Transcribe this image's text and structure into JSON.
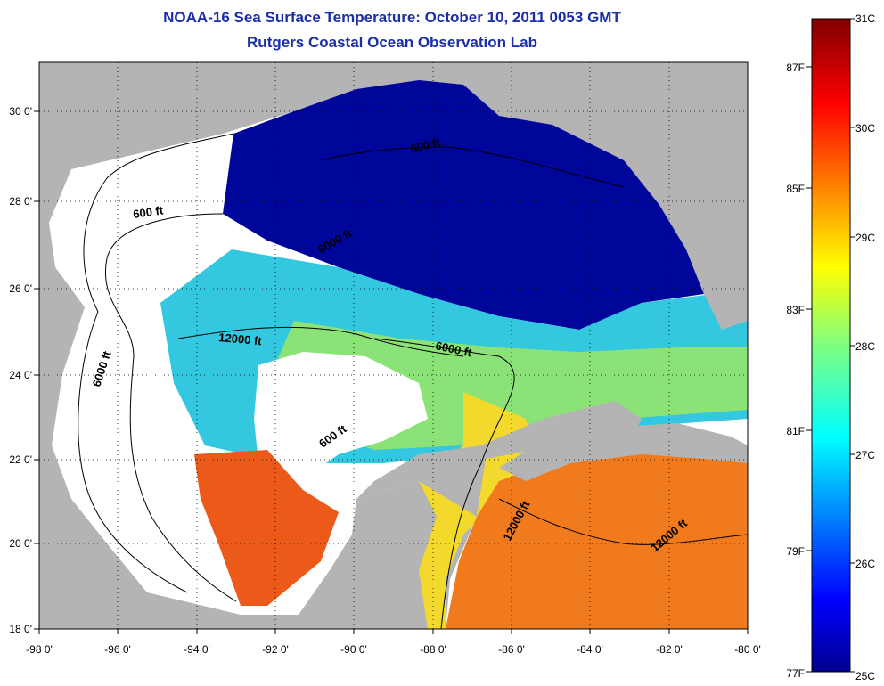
{
  "title": "NOAA-16 Sea Surface Temperature:  October 10, 2011 0053 GMT",
  "subtitle": "Rutgers Coastal Ocean Observation Lab",
  "map": {
    "lon_range": [
      -98,
      -80
    ],
    "lat_range": [
      18,
      31
    ],
    "lon_ticks": [
      "-98 0'",
      "-96 0'",
      "-94 0'",
      "-92 0'",
      "-90 0'",
      "-88 0'",
      "-86 0'",
      "-84 0'",
      "-82 0'",
      "-80 0'"
    ],
    "lat_ticks": [
      "18 0'",
      "20 0'",
      "22 0'",
      "24 0'",
      "26 0'",
      "28 0'",
      "30 0'"
    ],
    "grid": true,
    "land_color": "#b4b4b4",
    "no_data_color": "#ffffff",
    "contour_labels": [
      "600 ft",
      "6000 ft",
      "12000 ft",
      "6000 ft",
      "600 ft",
      "12000 ft",
      "12000 ft",
      "6000 ft",
      "600 ft"
    ]
  },
  "colorbar": {
    "celsius_labels": [
      "31C",
      "30C",
      "29C",
      "28C",
      "27C",
      "26C",
      "25C"
    ],
    "fahrenheit_labels": [
      "87F",
      "85F",
      "83F",
      "81F",
      "79F",
      "77F"
    ],
    "range_c": [
      25,
      31
    ],
    "colormap": "jet",
    "placement": "right"
  }
}
